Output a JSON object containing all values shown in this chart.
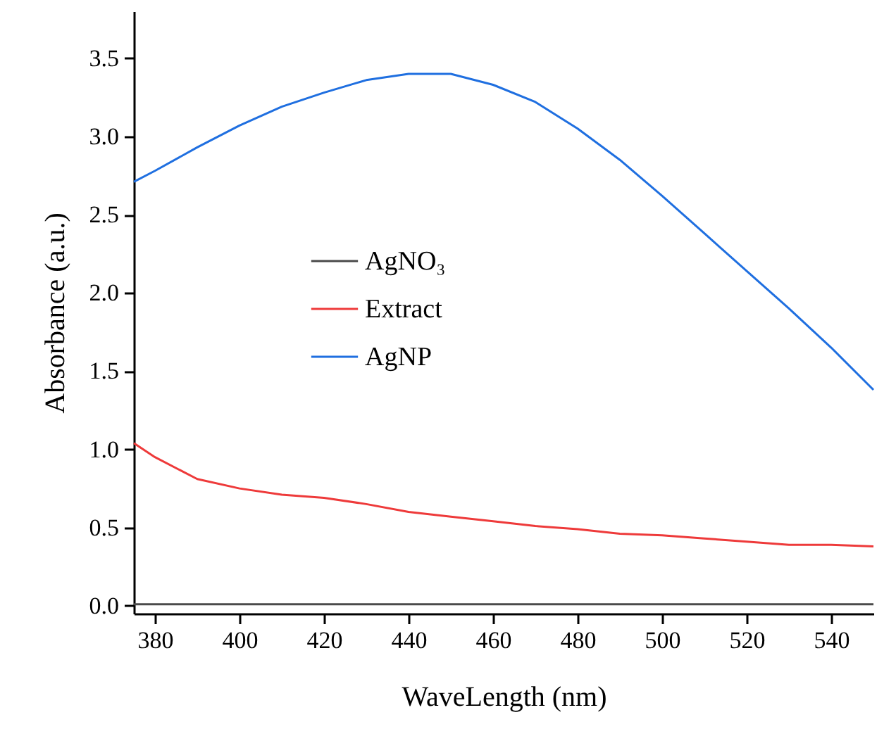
{
  "chart_data": {
    "type": "line",
    "xlabel": "WaveLength (nm)",
    "ylabel": "Absorbance (a.u.)",
    "xlim": [
      375,
      550
    ],
    "xticks": [
      380,
      400,
      420,
      440,
      460,
      480,
      500,
      520,
      540
    ],
    "ylim": [
      -0.05,
      3.8
    ],
    "yticks": [
      {
        "value": 0,
        "label": "0.0"
      },
      0.5,
      {
        "value": 1,
        "label": "1.0"
      },
      1.5,
      {
        "value": 2,
        "label": "2.0"
      },
      2.5,
      {
        "value": 3,
        "label": "3.0"
      },
      3.5
    ],
    "x": [
      375,
      380,
      390,
      400,
      410,
      420,
      430,
      440,
      450,
      460,
      470,
      480,
      490,
      500,
      510,
      520,
      530,
      540,
      550
    ],
    "series": [
      {
        "name": "AgNO₃",
        "color": "#4a4a4a",
        "values": [
          0.01,
          0.01,
          0.01,
          0.01,
          0.01,
          0.01,
          0.01,
          0.01,
          0.01,
          0.01,
          0.01,
          0.01,
          0.01,
          0.01,
          0.01,
          0.01,
          0.01,
          0.01,
          0.01
        ]
      },
      {
        "name": "Extract",
        "color": "#ee3a3a",
        "values": [
          1.04,
          0.95,
          0.81,
          0.75,
          0.71,
          0.69,
          0.65,
          0.6,
          0.57,
          0.54,
          0.51,
          0.49,
          0.46,
          0.45,
          0.43,
          0.41,
          0.39,
          0.39,
          0.38
        ]
      },
      {
        "name": "AgNP",
        "color": "#1f6fe0",
        "values": [
          2.71,
          2.78,
          2.93,
          3.07,
          3.19,
          3.28,
          3.36,
          3.4,
          3.4,
          3.33,
          3.22,
          3.05,
          2.85,
          2.62,
          2.38,
          2.14,
          1.9,
          1.65,
          1.38
        ]
      }
    ],
    "legend": "center left",
    "grid": false,
    "line_style": "solid"
  }
}
